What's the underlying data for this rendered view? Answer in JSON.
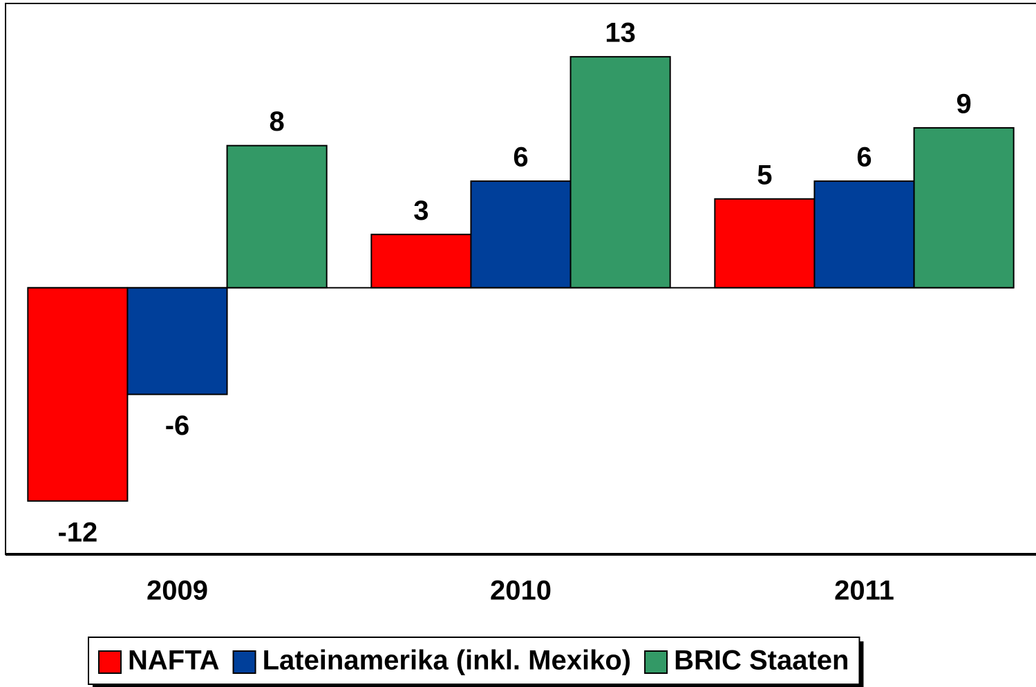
{
  "chart_data": {
    "type": "bar",
    "categories": [
      "2009",
      "2010",
      "2011"
    ],
    "series": [
      {
        "name": "NAFTA",
        "color": "#ff0000",
        "values": [
          -12,
          3,
          5
        ]
      },
      {
        "name": "Lateinamerika (inkl. Mexiko)",
        "color": "#003f9a",
        "values": [
          -6,
          6,
          6
        ]
      },
      {
        "name": "BRIC Staaten",
        "color": "#339966",
        "values": [
          8,
          13,
          9
        ]
      }
    ],
    "ylim": [
      -15,
      16
    ],
    "legend": "bottom"
  }
}
